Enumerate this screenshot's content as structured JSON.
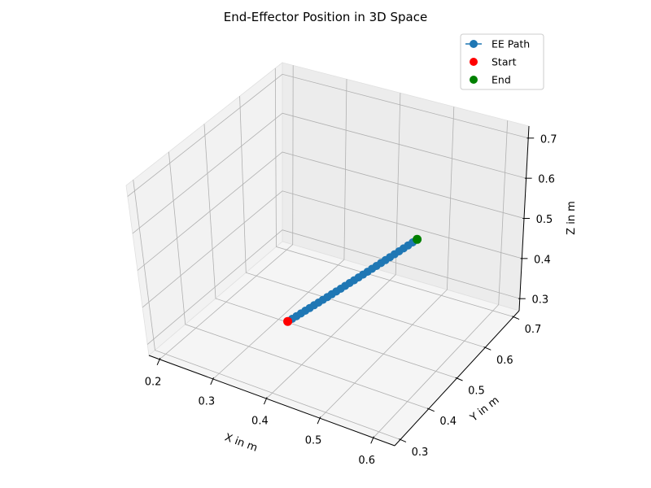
{
  "chart_data": {
    "type": "scatter",
    "projection": "3d",
    "title": "End-Effector Position in 3D Space",
    "xlabel": "X in m",
    "ylabel": "Y in m",
    "zlabel": "Z in m",
    "xlim": [
      0.18,
      0.64
    ],
    "ylim": [
      0.28,
      0.72
    ],
    "zlim": [
      0.27,
      0.73
    ],
    "xticks": [
      "0.2",
      "0.3",
      "0.4",
      "0.5",
      "0.6"
    ],
    "yticks": [
      "0.3",
      "0.4",
      "0.5",
      "0.6",
      "0.7"
    ],
    "zticks": [
      "0.3",
      "0.4",
      "0.5",
      "0.6",
      "0.7"
    ],
    "grid": true,
    "legend_position": "top-right",
    "series": [
      {
        "name": "EE Path",
        "kind": "line-with-markers",
        "color": "#1f77b4",
        "path": {
          "start": [
            0.375,
            0.405,
            0.37
          ],
          "end": [
            0.53,
            0.56,
            0.535
          ],
          "points": 30
        }
      },
      {
        "name": "Start",
        "kind": "scatter",
        "color": "#ff0000",
        "point": [
          0.375,
          0.405,
          0.37
        ]
      },
      {
        "name": "End",
        "kind": "scatter",
        "color": "#008000",
        "point": [
          0.53,
          0.56,
          0.535
        ]
      }
    ]
  }
}
